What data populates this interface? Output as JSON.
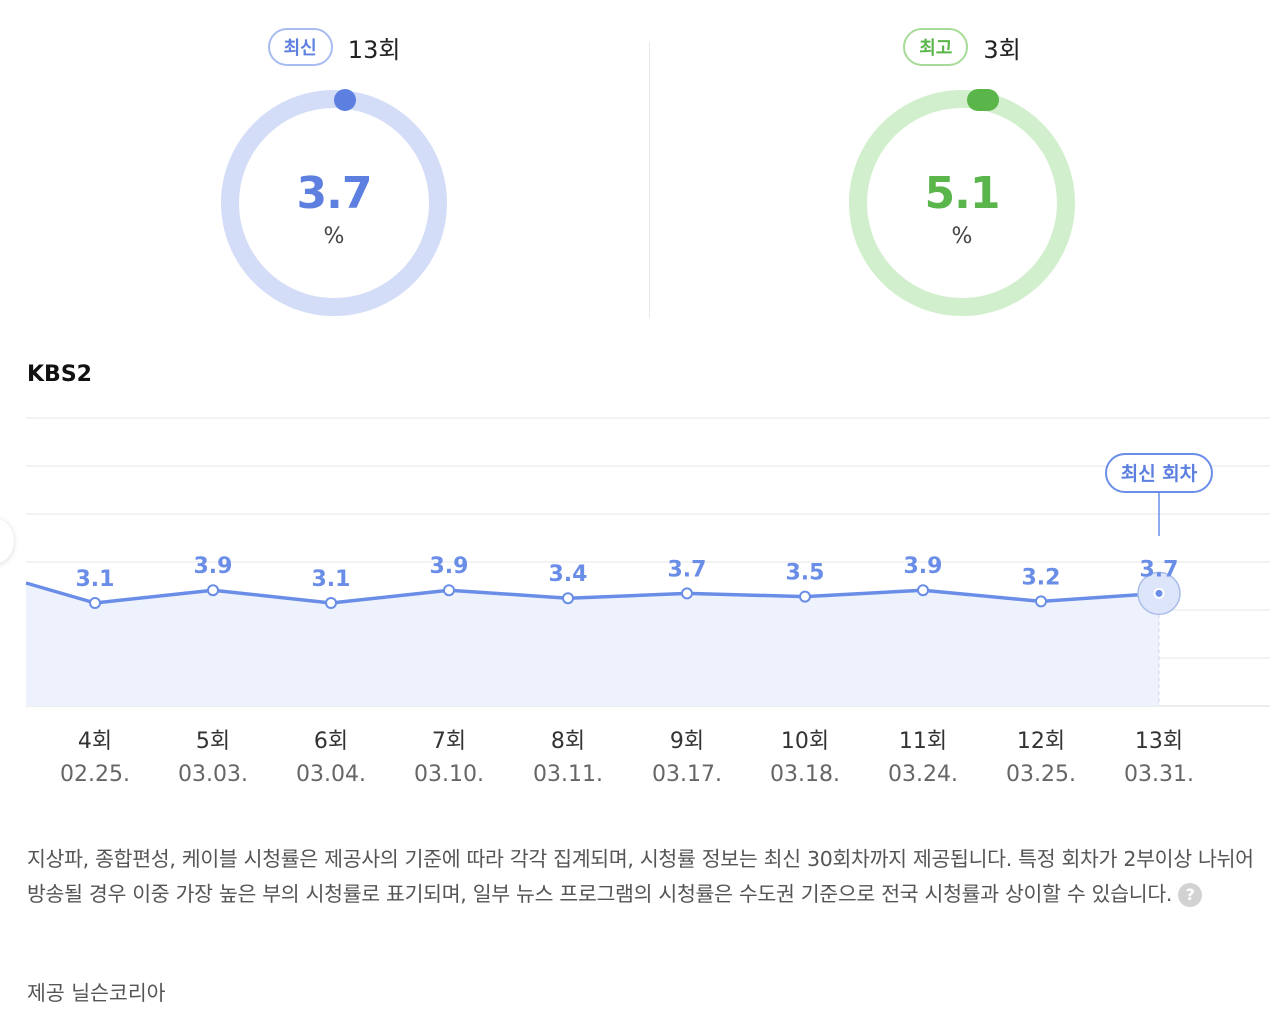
{
  "summary": {
    "latest": {
      "badge": "최신",
      "count": "13회",
      "value": "3.7",
      "unit": "%",
      "color": "#5c7fe0",
      "track_color": "#d4ddf7"
    },
    "best": {
      "badge": "최고",
      "count": "3회",
      "value": "5.1",
      "unit": "%",
      "color": "#5ab54a",
      "track_color": "#d2efcd"
    }
  },
  "channel": "KBS2",
  "chart_data": {
    "type": "line",
    "categories": [
      "4회",
      "5회",
      "6회",
      "7회",
      "8회",
      "9회",
      "10회",
      "11회",
      "12회",
      "13회"
    ],
    "dates": [
      "02.25.",
      "03.03.",
      "03.04.",
      "03.10.",
      "03.11.",
      "03.17.",
      "03.18.",
      "03.24.",
      "03.25.",
      "03.31."
    ],
    "values": [
      3.1,
      3.9,
      3.1,
      3.9,
      3.4,
      3.7,
      3.5,
      3.9,
      3.2,
      3.7
    ],
    "value_labels": [
      "3.1",
      "3.9",
      "3.1",
      "3.9",
      "3.4",
      "3.7",
      "3.5",
      "3.9",
      "3.2",
      "3.7"
    ],
    "latest_label": "최신 회차",
    "line_color": "#6a8ee8",
    "fill_color": "#eef2fd",
    "grid": true
  },
  "notice": "지상파, 종합편성, 케이블 시청률은 제공사의 기준에 따라 각각 집계되며, 시청률 정보는 최신 30회차까지 제공됩니다. 특정 회차가 2부이상 나뉘어 방송될 경우 이중 가장 높은 부의 시청률로 표기되며, 일부 뉴스 프로그램의 시청률은 수도권 기준으로 전국 시청률과 상이할 수 있습니다.",
  "help_icon_glyph": "?",
  "provider": "제공 닐슨코리아"
}
